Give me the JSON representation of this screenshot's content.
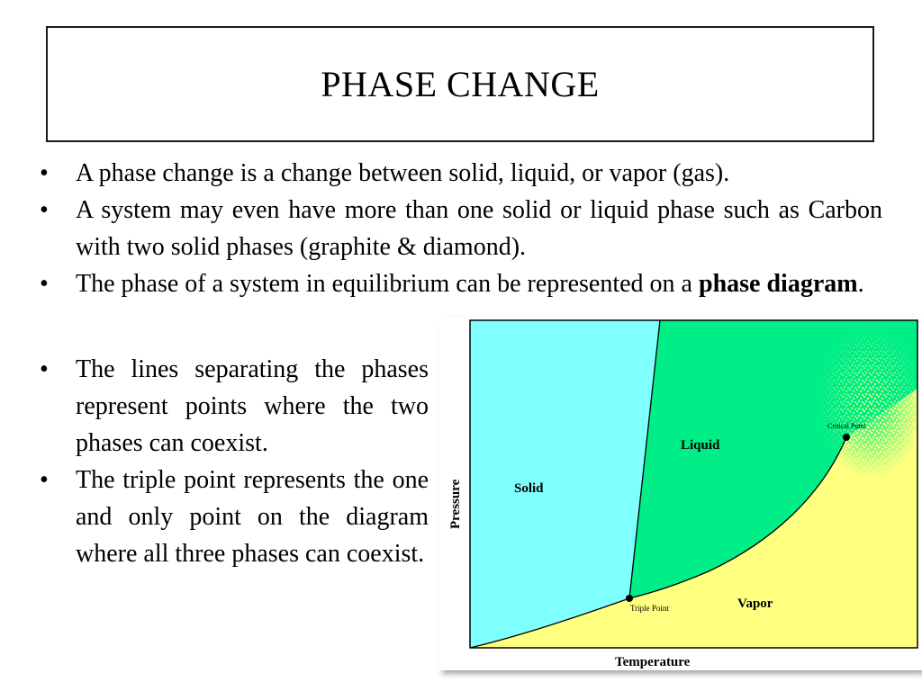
{
  "title": "PHASE CHANGE",
  "bullets_top": [
    {
      "text": "A phase change is a change between solid, liquid, or vapor (gas)."
    },
    {
      "text": "A system may even have more than one solid or liquid phase such as Carbon with two solid phases (graphite & diamond)."
    },
    {
      "text_before": "The phase of a system in equilibrium can be represented on a ",
      "bold": "phase diagram",
      "text_after": "."
    }
  ],
  "bullets_bottom": [
    {
      "text": "The lines separating the phases represent points where the two phases can coexist."
    },
    {
      "text": "The triple point represents the one and only point on the diagram where all three phases can coexist."
    }
  ],
  "diagram": {
    "regions": {
      "solid": "Solid",
      "liquid": "Liquid",
      "vapor": "Vapor"
    },
    "points": {
      "triple": "Triple Point",
      "critical": "Critical Point"
    },
    "xlabel": "Temperature",
    "ylabel": "Pressure",
    "colors": {
      "solid": "#80ffff",
      "liquid": "#00ee88",
      "vapor": "#ffff80",
      "frame": "#000000"
    }
  }
}
